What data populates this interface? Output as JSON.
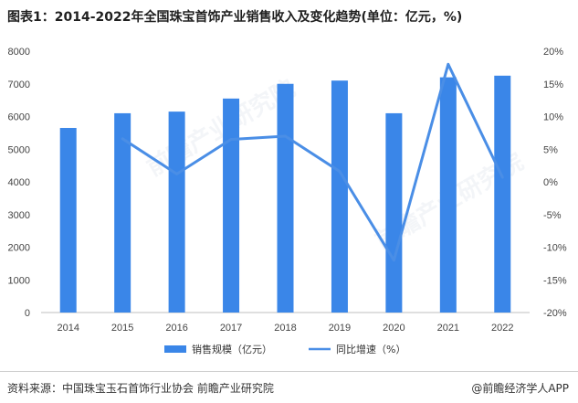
{
  "title": "图表1：2014-2022年全国珠宝首饰产业销售收入及变化趋势(单位：亿元，%)",
  "source": "资料来源：中国珠宝玉石首饰行业协会 前瞻产业研究院",
  "brand": "@前瞻经济学人APP",
  "watermark": "前瞻产业研究院",
  "colors": {
    "bar": "#3a86e8",
    "line": "#4a8ee6"
  },
  "chart_data": {
    "type": "bar",
    "categories": [
      "2014",
      "2015",
      "2016",
      "2017",
      "2018",
      "2019",
      "2020",
      "2021",
      "2022"
    ],
    "series": [
      {
        "name": "销售规模（亿元）",
        "type": "bar",
        "axis": "left",
        "values": [
          5650,
          6100,
          6150,
          6550,
          7000,
          7100,
          6100,
          7200,
          7250
        ]
      },
      {
        "name": "同比增速（%）",
        "type": "line",
        "axis": "right",
        "values": [
          null,
          6.6,
          1.2,
          6.5,
          7.0,
          1.6,
          -12.0,
          18.0,
          0.7
        ]
      }
    ],
    "y_left": {
      "min": 0,
      "max": 8000,
      "ticks": [
        "0",
        "1000",
        "2000",
        "3000",
        "4000",
        "5000",
        "6000",
        "7000",
        "8000"
      ]
    },
    "y_right": {
      "min": -20,
      "max": 20,
      "ticks": [
        "-20%",
        "-15%",
        "-10%",
        "-5%",
        "0%",
        "5%",
        "10%",
        "15%",
        "20%"
      ]
    },
    "grid": false,
    "legend": "bottom"
  }
}
